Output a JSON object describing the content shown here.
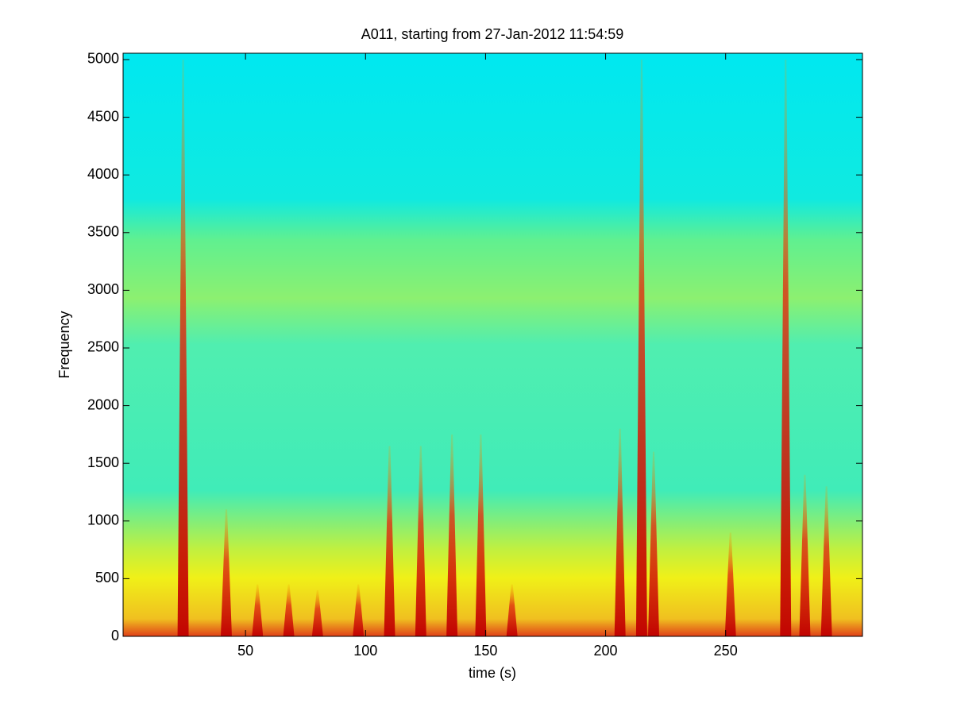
{
  "chart_data": {
    "type": "spectrogram",
    "title": "A011, starting from 27-Jan-2012 11:54:59",
    "xlabel": "time (s)",
    "ylabel": "Frequency",
    "xlim": [
      -1,
      307
    ],
    "ylim": [
      0,
      5055
    ],
    "xticks": [
      50,
      100,
      150,
      200,
      250
    ],
    "yticks": [
      0,
      500,
      1000,
      1500,
      2000,
      2500,
      3000,
      3500,
      4000,
      4500,
      5000
    ],
    "x": [
      24,
      42,
      55,
      68,
      80,
      97,
      110,
      123,
      136,
      148,
      161,
      206,
      215,
      220,
      252,
      275,
      283,
      292
    ],
    "values": [
      5000,
      1100,
      450,
      450,
      400,
      450,
      1650,
      1650,
      1750,
      1750,
      450,
      1800,
      5000,
      1600,
      900,
      5000,
      1400,
      1300
    ]
  }
}
